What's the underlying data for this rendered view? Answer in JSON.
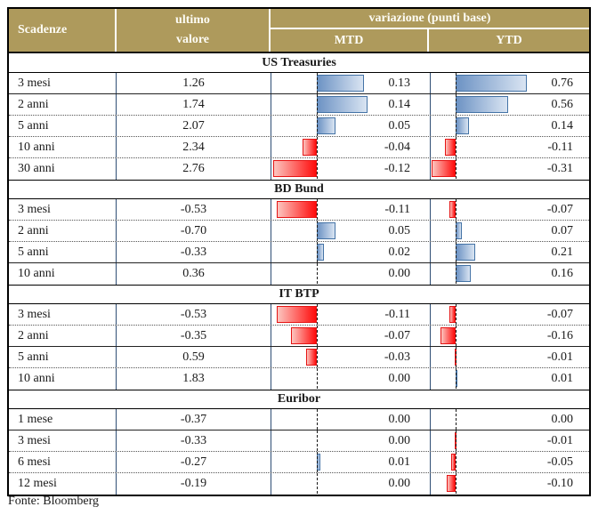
{
  "header": {
    "scadenze": "Scadenze",
    "ultimo_line1": "ultimo",
    "ultimo_line2": "valore",
    "variazione": "variazione (punti base)",
    "mtd": "MTD",
    "ytd": "YTD"
  },
  "footer": {
    "source": "Fonte: Bloomberg"
  },
  "colors": {
    "header_bg": "#ae9a5c",
    "header_text": "#fdfcf5",
    "positive_bar_border": "#4473a6",
    "positive_bar_fill_start": "#6d93c4",
    "positive_bar_fill_end": "#d9e4f2",
    "negative_bar_border": "#e51414",
    "negative_bar_fill_start": "#fcc5bf",
    "negative_bar_fill_end": "#ff0b0b",
    "column_divider": "#2f4e75"
  },
  "chart_data": {
    "type": "table",
    "title": "variazione (punti base)",
    "columns": [
      "Scadenze",
      "ultimo valore",
      "MTD",
      "YTD"
    ],
    "value_unit": "punti base",
    "bar_style": "diverging data bars, blue = positive, red = negative, dashed zero baseline",
    "sections": [
      {
        "title": "US Treasuries",
        "rows": [
          {
            "maturity": "3 mesi",
            "last": 1.26,
            "mtd": 0.13,
            "ytd": 0.76,
            "divider": "solid"
          },
          {
            "maturity": "2 anni",
            "last": 1.74,
            "mtd": 0.14,
            "ytd": 0.56,
            "divider": "dotted"
          },
          {
            "maturity": "5 anni",
            "last": 2.07,
            "mtd": 0.05,
            "ytd": 0.14,
            "divider": "dotted"
          },
          {
            "maturity": "10 anni",
            "last": 2.34,
            "mtd": -0.04,
            "ytd": -0.11,
            "divider": "dotted"
          },
          {
            "maturity": "30 anni",
            "last": 2.76,
            "mtd": -0.12,
            "ytd": -0.31,
            "divider": null
          }
        ]
      },
      {
        "title": "BD Bund",
        "rows": [
          {
            "maturity": "3 mesi",
            "last": -0.53,
            "mtd": -0.11,
            "ytd": -0.07,
            "divider": "dotted"
          },
          {
            "maturity": "2 anni",
            "last": -0.7,
            "mtd": 0.05,
            "ytd": 0.07,
            "divider": "dotted"
          },
          {
            "maturity": "5 anni",
            "last": -0.33,
            "mtd": 0.02,
            "ytd": 0.21,
            "divider": "solid"
          },
          {
            "maturity": "10 anni",
            "last": 0.36,
            "mtd": 0.0,
            "ytd": 0.16,
            "divider": null
          }
        ]
      },
      {
        "title": "IT BTP",
        "rows": [
          {
            "maturity": "3 mesi",
            "last": -0.53,
            "mtd": -0.11,
            "ytd": -0.07,
            "divider": "dotted"
          },
          {
            "maturity": "2 anni",
            "last": -0.35,
            "mtd": -0.07,
            "ytd": -0.16,
            "divider": "solid"
          },
          {
            "maturity": "5 anni",
            "last": 0.59,
            "mtd": -0.03,
            "ytd": -0.01,
            "divider": "dotted"
          },
          {
            "maturity": "10 anni",
            "last": 1.83,
            "mtd": 0.0,
            "ytd": 0.01,
            "divider": null
          }
        ]
      },
      {
        "title": "Euribor",
        "rows": [
          {
            "maturity": "1 mese",
            "last": -0.37,
            "mtd": 0.0,
            "ytd": 0.0,
            "divider": "solid"
          },
          {
            "maturity": "3 mesi",
            "last": -0.33,
            "mtd": 0.0,
            "ytd": -0.01,
            "divider": "dotted"
          },
          {
            "maturity": "6 mesi",
            "last": -0.27,
            "mtd": 0.01,
            "ytd": -0.05,
            "divider": "dotted"
          },
          {
            "maturity": "12 mesi",
            "last": -0.19,
            "mtd": 0.0,
            "ytd": -0.1,
            "divider": null
          }
        ]
      }
    ]
  }
}
